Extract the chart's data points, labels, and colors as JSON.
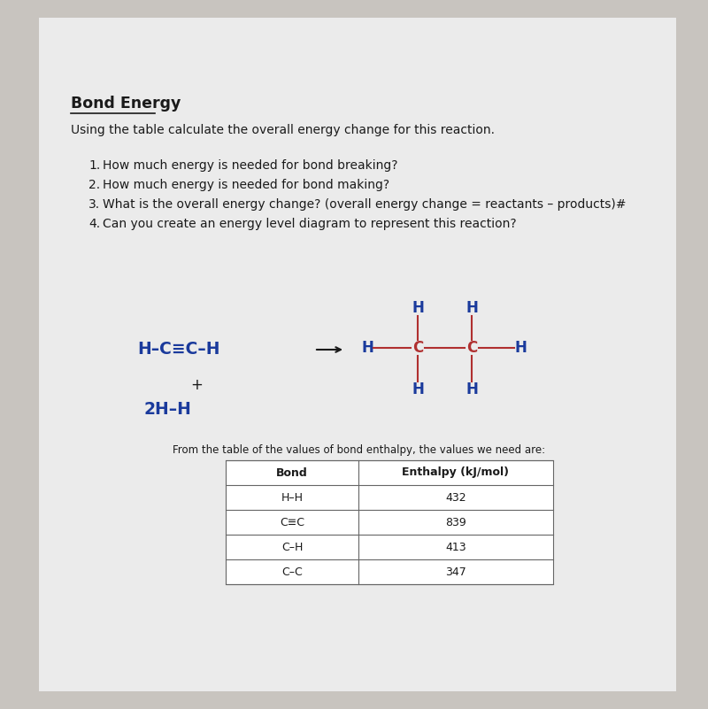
{
  "title": "Bond Energy",
  "subtitle": "Using the table calculate the overall energy change for this reaction.",
  "questions": [
    "How much energy is needed for bond breaking?",
    "How much energy is needed for bond making?",
    "What is the overall energy change? (overall energy change = reactants – products)#",
    "Can you create an energy level diagram to represent this reaction?"
  ],
  "table_intro": "From the table of the values of bond enthalpy, the values we need are:",
  "table_headers": [
    "Bond",
    "Enthalpy (kJ/mol)"
  ],
  "table_rows": [
    [
      "H–H",
      "432"
    ],
    [
      "C≡C",
      "839"
    ],
    [
      "C–H",
      "413"
    ],
    [
      "C–C",
      "347"
    ]
  ],
  "bg_color": "#c8c4bf",
  "paper_color": "#ebebeb",
  "text_color": "#1a1a1a",
  "blue_color": "#1a3a9c",
  "red_color": "#b03030",
  "title_fontsize": 12.5,
  "body_fontsize": 10.0,
  "small_fontsize": 8.5,
  "chem_fontsize": 13.5,
  "table_fontsize": 9.0
}
